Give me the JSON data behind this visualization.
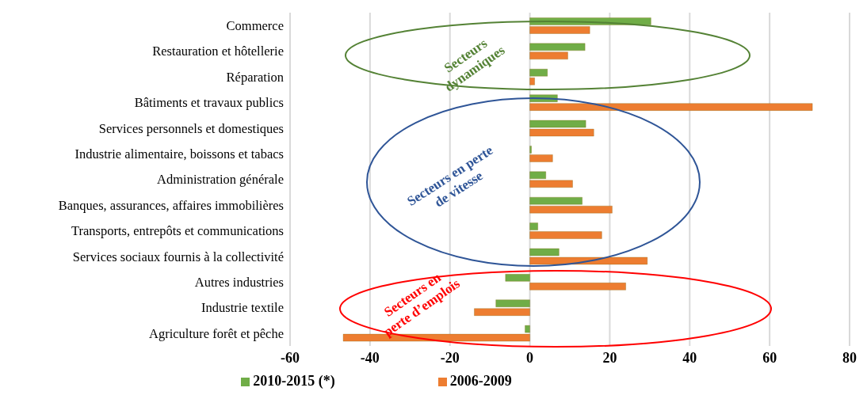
{
  "chart_data": {
    "type": "bar",
    "orientation": "horizontal",
    "categories": [
      "Commerce",
      "Restauration et hôtellerie",
      "Réparation",
      "Bâtiments et travaux publics",
      "Services personnels et domestiques",
      "Industrie alimentaire, boissons et tabacs",
      "Administration générale",
      "Banques, assurances, affaires immobilières",
      "Transports, entrepôts et communications",
      "Services sociaux fournis à la collectivité",
      "Autres industries",
      "Industrie textile",
      "Agriculture forêt et pêche"
    ],
    "series": [
      {
        "name": "2010-2015 (*)",
        "color": "#70ad47",
        "values": [
          30.3,
          13.8,
          4.4,
          6.9,
          14,
          0.4,
          4,
          13.1,
          2,
          7.3,
          -6.1,
          -8.5,
          -1.2
        ]
      },
      {
        "name": "2006-2009",
        "color": "#ed7d31",
        "values": [
          15,
          9.5,
          1.2,
          70.7,
          16,
          5.7,
          10.7,
          20.6,
          18,
          29.4,
          24,
          -13.9,
          -46.7
        ]
      }
    ],
    "xlim": [
      -60,
      80
    ],
    "xticks": [
      -60,
      -40,
      -20,
      0,
      20,
      40,
      60,
      80
    ],
    "grid": "x",
    "legend": "bottom",
    "annotations": [
      "Secteurs dynamiques",
      "Secteurs en perte de vitesse",
      "Secteurs en perte d’emplois"
    ]
  }
}
